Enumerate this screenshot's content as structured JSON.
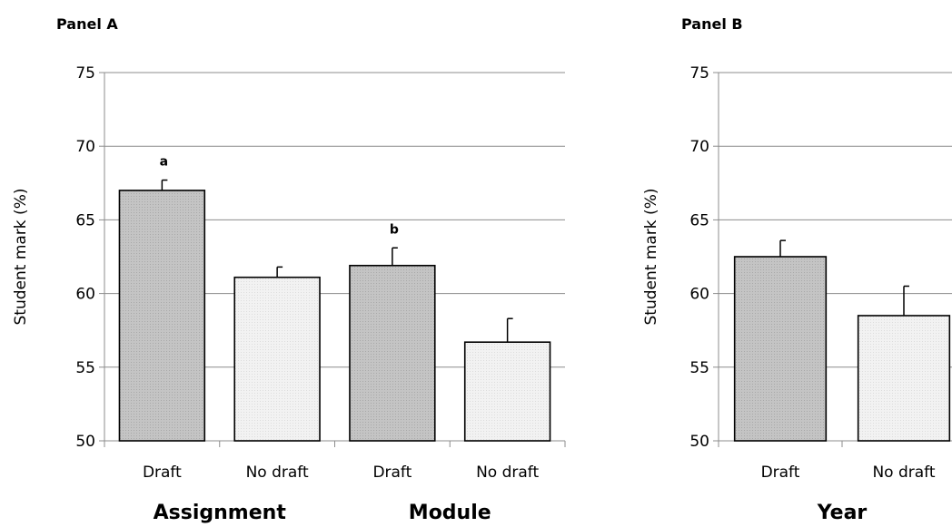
{
  "chart_data": [
    {
      "type": "bar",
      "panel_title": "Panel A",
      "ylabel": "Student mark (%)",
      "ylim": [
        50,
        75
      ],
      "yticks": [
        50,
        55,
        60,
        65,
        70,
        75
      ],
      "grid": true,
      "bars": [
        {
          "label": "Draft",
          "value": 67.0,
          "error": 0.7,
          "annotation": "a",
          "fill": "#c4c4c4"
        },
        {
          "label": "No draft",
          "value": 61.1,
          "error": 0.7,
          "annotation": "",
          "fill": "#f2f2f2"
        },
        {
          "label": "Draft",
          "value": 61.9,
          "error": 1.2,
          "annotation": "b",
          "fill": "#c4c4c4"
        },
        {
          "label": "No draft",
          "value": 56.7,
          "error": 1.6,
          "annotation": "",
          "fill": "#f2f2f2"
        }
      ],
      "groups": [
        {
          "label": "Assignment",
          "span": [
            0,
            1
          ]
        },
        {
          "label": "Module",
          "span": [
            2,
            3
          ]
        }
      ]
    },
    {
      "type": "bar",
      "panel_title": "Panel B",
      "ylabel": "Student mark (%)",
      "ylim": [
        50,
        75
      ],
      "yticks": [
        50,
        55,
        60,
        65,
        70,
        75
      ],
      "grid": true,
      "bars": [
        {
          "label": "Draft",
          "value": 62.5,
          "error": 1.1,
          "annotation": "",
          "fill": "#c4c4c4"
        },
        {
          "label": "No draft",
          "value": 58.5,
          "error": 2.0,
          "annotation": "",
          "fill": "#f2f2f2"
        }
      ],
      "groups": [
        {
          "label": "Year",
          "span": [
            0,
            1
          ]
        }
      ]
    }
  ]
}
